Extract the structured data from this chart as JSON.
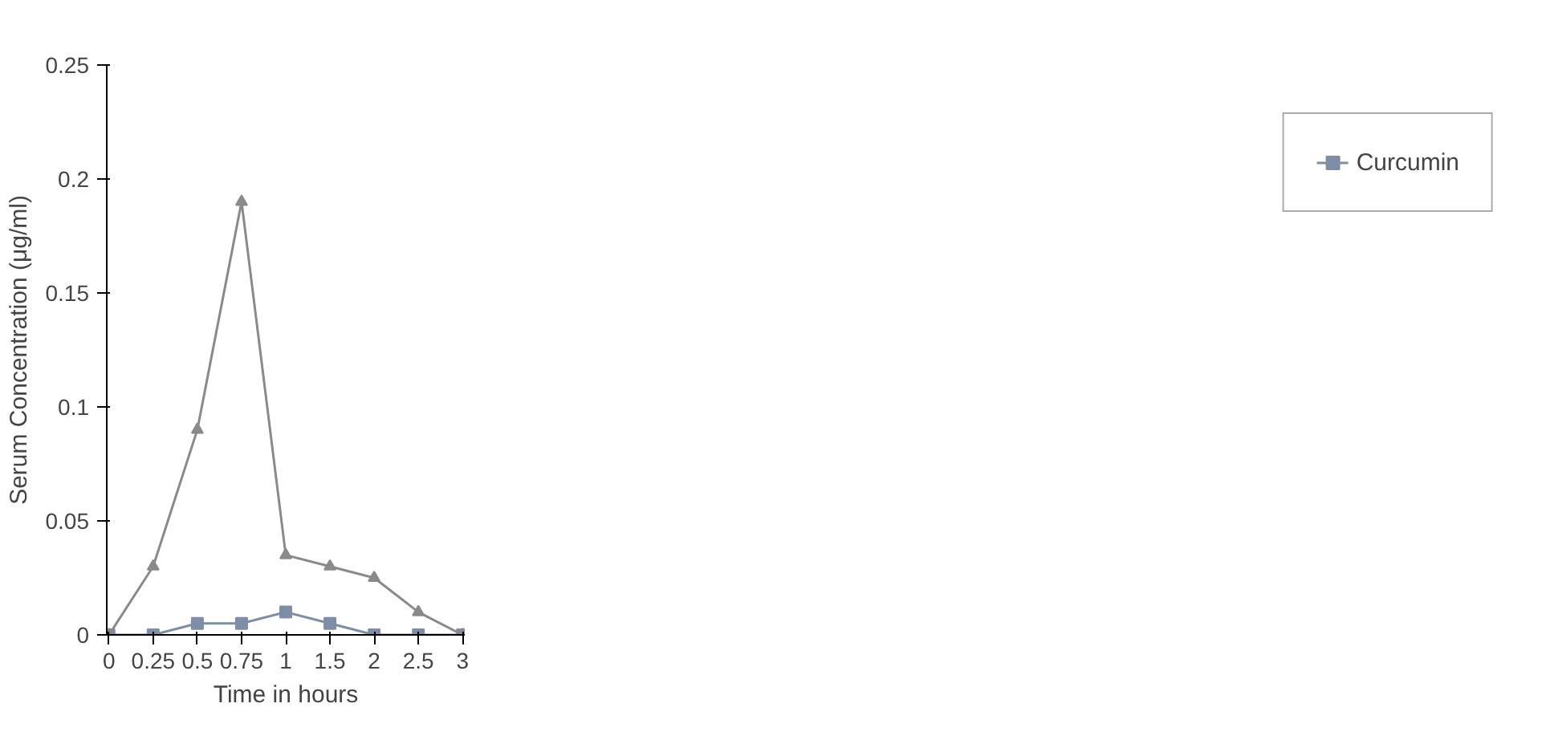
{
  "chart_data": {
    "type": "line",
    "xlabel": "Time in hours",
    "ylabel": "Serum Concentration (μg/ml)",
    "categories": [
      "0",
      "0.25",
      "0.5",
      "0.75",
      "1",
      "1.5",
      "2",
      "2.5",
      "3"
    ],
    "series": [
      {
        "name": "Curcumin",
        "color": "#7d8ea6",
        "marker": "square",
        "values": [
          0,
          0,
          0.005,
          0.005,
          0.01,
          0.005,
          0,
          0,
          0
        ]
      },
      {
        "color": "#8a8a8a",
        "marker": "triangle",
        "values": [
          0,
          0.03,
          0.09,
          0.19,
          0.035,
          0.03,
          0.025,
          0.01,
          0
        ]
      }
    ],
    "ylim": [
      0,
      0.25
    ],
    "yticks": [
      0,
      0.05,
      0.1,
      0.15,
      0.2,
      0.25
    ],
    "grid": false,
    "legend": "right",
    "line_style": "solid"
  }
}
